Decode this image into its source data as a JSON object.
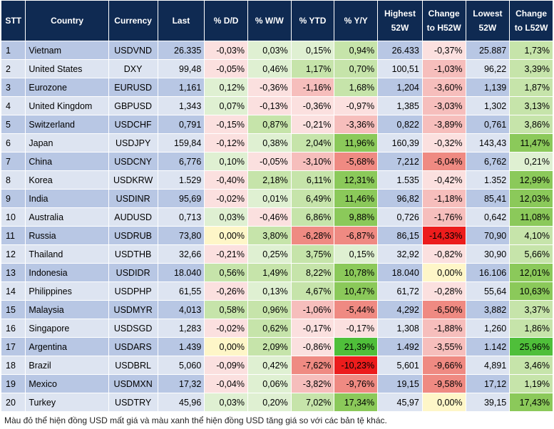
{
  "headers": [
    "STT",
    "Country",
    "Currency",
    "Last",
    "% D/D",
    "% W/W",
    "% YTD",
    "% Y/Y",
    "Highest 52W",
    "Change to H52W",
    "Lowest 52W",
    "Change to L52W"
  ],
  "rows": [
    {
      "stt": "1",
      "country": "Vietnam",
      "currency": "USDVND",
      "last": "26.335",
      "dd": "-0,03%",
      "ww": "0,03%",
      "ytd": "0,15%",
      "yy": "0,94%",
      "h52": "26.433",
      "ch52": "-0,37%",
      "l52": "25.887",
      "cl52": "1,73%"
    },
    {
      "stt": "2",
      "country": "United States",
      "currency": "DXY",
      "last": "99,48",
      "dd": "-0,05%",
      "ww": "0,46%",
      "ytd": "1,17%",
      "yy": "0,70%",
      "h52": "100,51",
      "ch52": "-1,03%",
      "l52": "96,22",
      "cl52": "3,39%"
    },
    {
      "stt": "3",
      "country": "Eurozone",
      "currency": "EURUSD",
      "last": "1,161",
      "dd": "0,12%",
      "ww": "-0,36%",
      "ytd": "-1,16%",
      "yy": "1,68%",
      "h52": "1,204",
      "ch52": "-3,60%",
      "l52": "1,139",
      "cl52": "1,87%"
    },
    {
      "stt": "4",
      "country": "United Kingdom",
      "currency": "GBPUSD",
      "last": "1,343",
      "dd": "0,07%",
      "ww": "-0,13%",
      "ytd": "-0,36%",
      "yy": "-0,97%",
      "h52": "1,385",
      "ch52": "-3,03%",
      "l52": "1,302",
      "cl52": "3,13%"
    },
    {
      "stt": "5",
      "country": "Switzerland",
      "currency": "USDCHF",
      "last": "0,791",
      "dd": "-0,15%",
      "ww": "0,87%",
      "ytd": "-0,21%",
      "yy": "-3,36%",
      "h52": "0,822",
      "ch52": "-3,89%",
      "l52": "0,761",
      "cl52": "3,86%"
    },
    {
      "stt": "6",
      "country": "Japan",
      "currency": "USDJPY",
      "last": "159,84",
      "dd": "-0,12%",
      "ww": "0,38%",
      "ytd": "2,04%",
      "yy": "11,96%",
      "h52": "160,39",
      "ch52": "-0,32%",
      "l52": "143,43",
      "cl52": "11,47%"
    },
    {
      "stt": "7",
      "country": "China",
      "currency": "USDCNY",
      "last": "6,776",
      "dd": "0,10%",
      "ww": "-0,05%",
      "ytd": "-3,10%",
      "yy": "-5,68%",
      "h52": "7,212",
      "ch52": "-6,04%",
      "l52": "6,762",
      "cl52": "0,21%"
    },
    {
      "stt": "8",
      "country": "Korea",
      "currency": "USDKRW",
      "last": "1.529",
      "dd": "-0,40%",
      "ww": "2,18%",
      "ytd": "6,11%",
      "yy": "12,31%",
      "h52": "1.535",
      "ch52": "-0,42%",
      "l52": "1.352",
      "cl52": "12,99%"
    },
    {
      "stt": "9",
      "country": "India",
      "currency": "USDINR",
      "last": "95,69",
      "dd": "-0,02%",
      "ww": "0,01%",
      "ytd": "6,49%",
      "yy": "11,46%",
      "h52": "96,82",
      "ch52": "-1,18%",
      "l52": "85,41",
      "cl52": "12,03%"
    },
    {
      "stt": "10",
      "country": "Australia",
      "currency": "AUDUSD",
      "last": "0,713",
      "dd": "0,03%",
      "ww": "-0,46%",
      "ytd": "6,86%",
      "yy": "9,88%",
      "h52": "0,726",
      "ch52": "-1,76%",
      "l52": "0,642",
      "cl52": "11,08%"
    },
    {
      "stt": "11",
      "country": "Russia",
      "currency": "USDRUB",
      "last": "73,80",
      "dd": "0,00%",
      "ww": "3,80%",
      "ytd": "-6,28%",
      "yy": "-6,87%",
      "h52": "86,15",
      "ch52": "-14,33%",
      "l52": "70,90",
      "cl52": "4,10%"
    },
    {
      "stt": "12",
      "country": "Thailand",
      "currency": "USDTHB",
      "last": "32,66",
      "dd": "-0,21%",
      "ww": "0,25%",
      "ytd": "3,75%",
      "yy": "0,15%",
      "h52": "32,92",
      "ch52": "-0,82%",
      "l52": "30,90",
      "cl52": "5,66%"
    },
    {
      "stt": "13",
      "country": "Indonesia",
      "currency": "USDIDR",
      "last": "18.040",
      "dd": "0,56%",
      "ww": "1,49%",
      "ytd": "8,22%",
      "yy": "10,78%",
      "h52": "18.040",
      "ch52": "0,00%",
      "l52": "16.106",
      "cl52": "12,01%"
    },
    {
      "stt": "14",
      "country": "Philippines",
      "currency": "USDPHP",
      "last": "61,55",
      "dd": "-0,26%",
      "ww": "0,13%",
      "ytd": "4,67%",
      "yy": "10,47%",
      "h52": "61,72",
      "ch52": "-0,28%",
      "l52": "55,64",
      "cl52": "10,63%"
    },
    {
      "stt": "15",
      "country": "Malaysia",
      "currency": "USDMYR",
      "last": "4,013",
      "dd": "0,58%",
      "ww": "0,96%",
      "ytd": "-1,06%",
      "yy": "-5,44%",
      "h52": "4,292",
      "ch52": "-6,50%",
      "l52": "3,882",
      "cl52": "3,37%"
    },
    {
      "stt": "16",
      "country": "Singapore",
      "currency": "USDSGD",
      "last": "1,283",
      "dd": "-0,02%",
      "ww": "0,62%",
      "ytd": "-0,17%",
      "yy": "-0,17%",
      "h52": "1,308",
      "ch52": "-1,88%",
      "l52": "1,260",
      "cl52": "1,86%"
    },
    {
      "stt": "17",
      "country": "Argentina",
      "currency": "USDARS",
      "last": "1.439",
      "dd": "0,00%",
      "ww": "2,09%",
      "ytd": "-0,86%",
      "yy": "21,39%",
      "h52": "1.492",
      "ch52": "-3,55%",
      "l52": "1.142",
      "cl52": "25,96%"
    },
    {
      "stt": "18",
      "country": "Brazil",
      "currency": "USDBRL",
      "last": "5,060",
      "dd": "-0,09%",
      "ww": "0,42%",
      "ytd": "-7,62%",
      "yy": "-10,23%",
      "h52": "5,601",
      "ch52": "-9,66%",
      "l52": "4,891",
      "cl52": "3,46%"
    },
    {
      "stt": "19",
      "country": "Mexico",
      "currency": "USDMXN",
      "last": "17,32",
      "dd": "-0,04%",
      "ww": "0,06%",
      "ytd": "-3,82%",
      "yy": "-9,76%",
      "h52": "19,15",
      "ch52": "-9,58%",
      "l52": "17,12",
      "cl52": "1,19%"
    },
    {
      "stt": "20",
      "country": "Turkey",
      "currency": "USDTRY",
      "last": "45,96",
      "dd": "0,03%",
      "ww": "0,20%",
      "ytd": "7,02%",
      "yy": "17,34%",
      "h52": "45,97",
      "ch52": "0,00%",
      "l52": "39,15",
      "cl52": "17,43%"
    }
  ],
  "footnote": "Màu đỏ thể hiện đồng USD mất giá và màu xanh thể hiện đồng USD tăng giá so với các bản tệ khác.",
  "colors": {
    "header_bg": "#0f2a52",
    "row_band_dark": "#b8c7e4",
    "row_band_light": "#dde4f1",
    "zero": "#fef6c8",
    "pos_light": "#dff0d2",
    "pos_mid": "#c6e4aa",
    "pos_strong": "#8bc95a",
    "pos_max": "#4fbf3a",
    "neg_light": "#fbe0df",
    "neg_mid": "#f6bebc",
    "neg_strong": "#ef8a82",
    "neg_max": "#ec1c1c"
  }
}
